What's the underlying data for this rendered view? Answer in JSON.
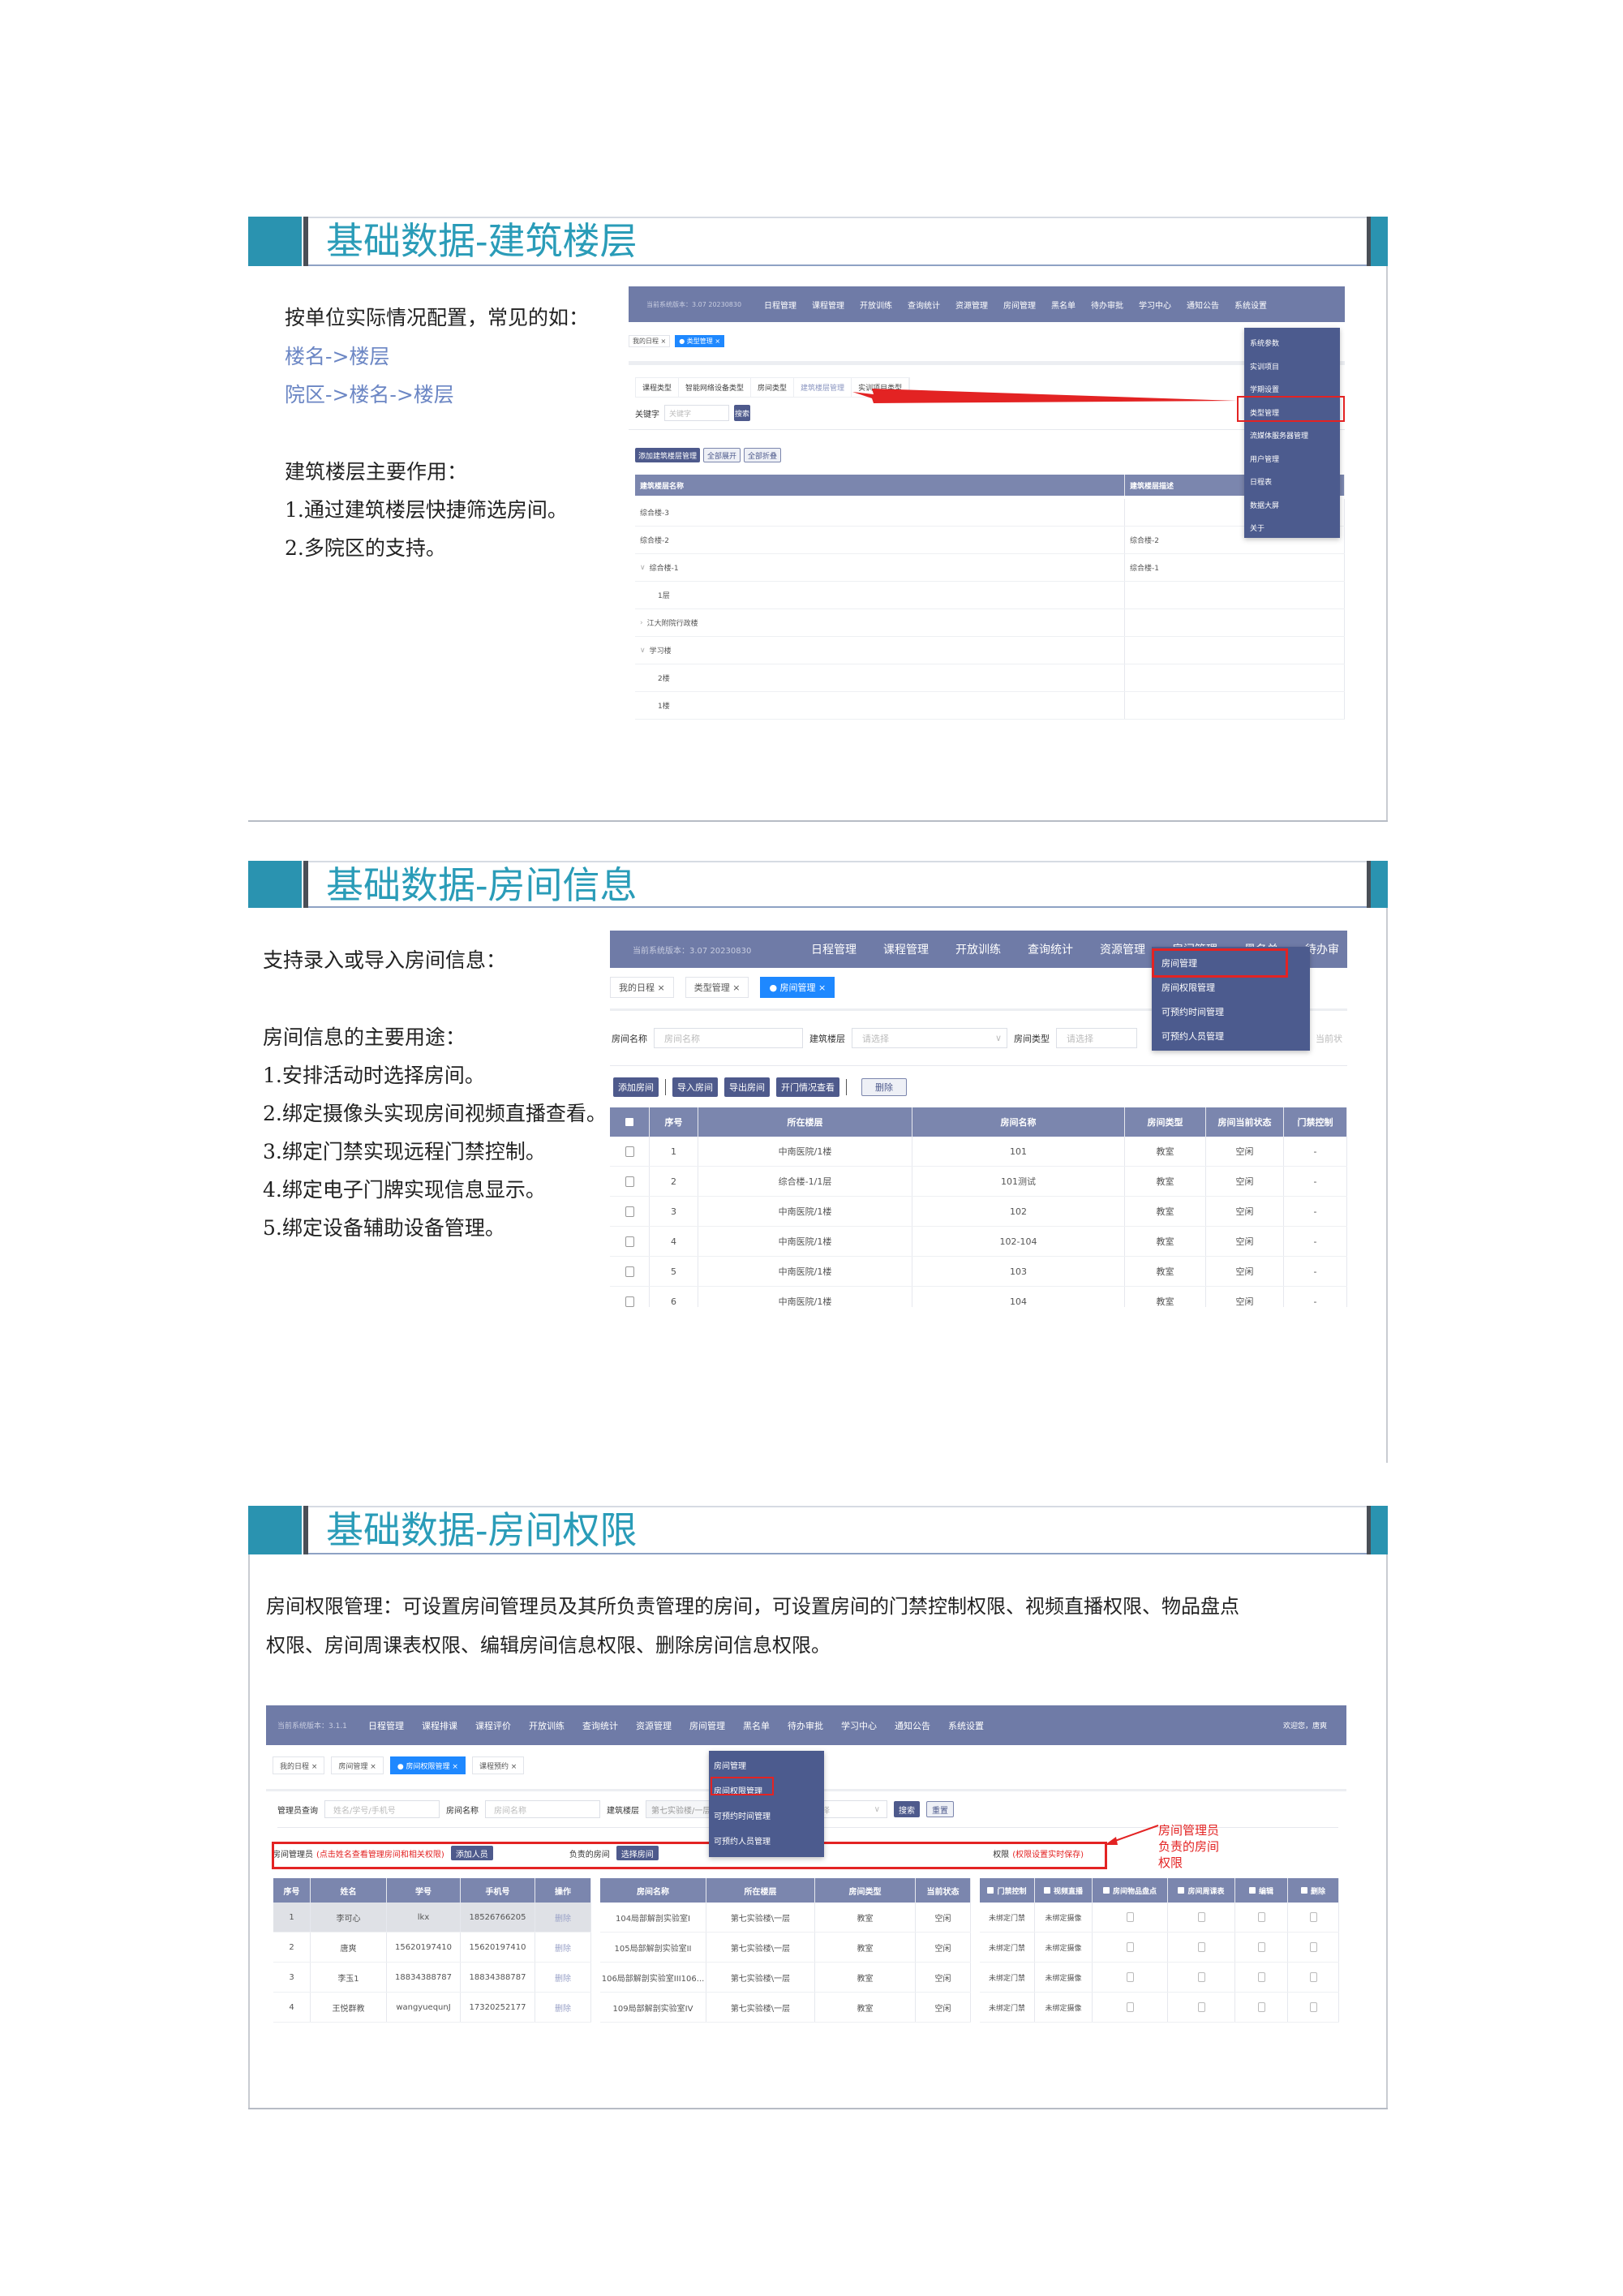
{
  "sections": [
    {
      "title": "基础数据-建筑楼层",
      "intro": "按单位实际情况配置，常见的如：",
      "examples": [
        "楼名->楼层",
        "院区->楼名->楼层"
      ],
      "purpose_title": "建筑楼层主要作用：",
      "purposes": [
        "1.通过建筑楼层快捷筛选房间。",
        "2.多院区的支持。"
      ]
    },
    {
      "title": "基础数据-房间信息",
      "intro": "支持录入或导入房间信息：",
      "purpose_title": "房间信息的主要用途：",
      "purposes": [
        "1.安排活动时选择房间。",
        "2.绑定摄像头实现房间视频直播查看。",
        "3.绑定门禁实现远程门禁控制。",
        "4.绑定电子门牌实现信息显示。",
        "5.绑定设备辅助设备管理。"
      ]
    },
    {
      "title": "基础数据-房间权限",
      "paragraph_lines": [
        "房间权限管理：可设置房间管理员及其所负责管理的房间，可设置房间的门禁控制权限、视频直播权限、物品盘点",
        "权限、房间周课表权限、编辑房间信息权限、删除房间信息权限。"
      ]
    }
  ],
  "shot1": {
    "version": "当前系统版本：3.07 20230830",
    "nav": [
      "日程管理",
      "课程管理",
      "开放训练",
      "查询统计",
      "资源管理",
      "房间管理",
      "黑名单",
      "待办审批",
      "学习中心",
      "通知公告",
      "系统设置"
    ],
    "tabs": [
      {
        "label": "我的日程 ×",
        "active": false
      },
      {
        "label": "● 类型管理 ×",
        "active": true
      }
    ],
    "subtabs": [
      "课程类型",
      "智能网络设备类型",
      "房间类型",
      "建筑楼层管理",
      "实训项目类型"
    ],
    "active_subtab": "建筑楼层管理",
    "keyword_label": "关键字",
    "keyword_placeholder": "关键字",
    "search_label": "搜索",
    "buttons": [
      "添加建筑楼层管理",
      "全部展开",
      "全部折叠"
    ],
    "headers": [
      "建筑楼层名称",
      "建筑楼层描述"
    ],
    "rows": [
      {
        "name": "综合楼-3",
        "desc": "",
        "level": 0,
        "toggle": ""
      },
      {
        "name": "综合楼-2",
        "desc": "综合楼-2",
        "level": 0,
        "toggle": ""
      },
      {
        "name": "综合楼-1",
        "desc": "综合楼-1",
        "level": 0,
        "toggle": "∨"
      },
      {
        "name": "1层",
        "desc": "",
        "level": 1,
        "toggle": ""
      },
      {
        "name": "江大附院行政楼",
        "desc": "",
        "level": 0,
        "toggle": "›"
      },
      {
        "name": "学习楼",
        "desc": "",
        "level": 0,
        "toggle": "∨"
      },
      {
        "name": "2楼",
        "desc": "",
        "level": 1,
        "toggle": ""
      },
      {
        "name": "1楼",
        "desc": "",
        "level": 1,
        "toggle": ""
      }
    ],
    "dropdown": [
      "系统参数",
      "实训项目",
      "学期设置",
      "类型管理",
      "流媒体服务器管理",
      "用户管理",
      "日程表",
      "数据大屏",
      "关于"
    ],
    "highlighted_item": "类型管理",
    "accent": "#e32323"
  },
  "shot2": {
    "version": "当前系统版本：3.07 20230830",
    "nav": [
      "日程管理",
      "课程管理",
      "开放训练",
      "查询统计",
      "资源管理",
      "房间管理",
      "黑名单",
      "待办审"
    ],
    "tabs": [
      {
        "label": "我的日程 ×",
        "active": false
      },
      {
        "label": "类型管理 ×",
        "active": false
      },
      {
        "label": "● 房间管理 ×",
        "active": true
      }
    ],
    "filters": {
      "room_name_label": "房间名称",
      "room_name_placeholder": "房间名称",
      "floor_label": "建筑楼层",
      "floor_placeholder": "请选择",
      "type_label": "房间类型",
      "type_placeholder": "请选择",
      "status_placeholder": "当前状"
    },
    "buttons": {
      "add": "添加房间",
      "import": "导入房间",
      "export": "导出房间",
      "door_log": "开门情况查看",
      "delete": "删除"
    },
    "headers": [
      "序号",
      "所在楼层",
      "房间名称",
      "房间类型",
      "房间当前状态",
      "门禁控制"
    ],
    "rows": [
      [
        "1",
        "中南医院/1楼",
        "101",
        "教室",
        "空闲",
        "-"
      ],
      [
        "2",
        "综合楼-1/1层",
        "101测试",
        "教室",
        "空闲",
        "-"
      ],
      [
        "3",
        "中南医院/1楼",
        "102",
        "教室",
        "空闲",
        "-"
      ],
      [
        "4",
        "中南医院/1楼",
        "102-104",
        "教室",
        "空闲",
        "-"
      ],
      [
        "5",
        "中南医院/1楼",
        "103",
        "教室",
        "空闲",
        "-"
      ],
      [
        "6",
        "中南医院/1楼",
        "104",
        "教室",
        "空闲",
        "-"
      ]
    ],
    "dropdown": [
      "房间管理",
      "房间权限管理",
      "可预约时间管理",
      "可预约人员管理"
    ],
    "highlighted_item": "房间管理"
  },
  "shot3": {
    "version": "当前系统版本：3.1.1",
    "nav": [
      "日程管理",
      "课程排课",
      "课程评价",
      "开放训练",
      "查询统计",
      "资源管理",
      "房间管理",
      "黑名单",
      "待办审批",
      "学习中心",
      "通知公告",
      "系统设置"
    ],
    "welcome": "欢迎您，唐爽",
    "tabs": [
      {
        "label": "我的日程 ×",
        "active": false
      },
      {
        "label": "房间管理 ×",
        "active": false
      },
      {
        "label": "● 房间权限管理 ×",
        "active": true
      },
      {
        "label": "课程预约 ×",
        "active": false
      }
    ],
    "filters": {
      "admin_label": "管理员查询",
      "admin_placeholder": "姓名/学号/手机号",
      "room_label": "房间名称",
      "room_placeholder": "房间名称",
      "floor_label": "建筑楼层",
      "floor_value": "第七实验楼/一层/...",
      "select_placeholder": "请选择",
      "search": "搜索",
      "reset": "重置"
    },
    "bar": {
      "admins_label": "房间管理员",
      "admins_hint": "(点击姓名查看管理房间和相关权限)",
      "add_person": "添加人员",
      "rooms_label": "负责的房间",
      "select_room": "选择房间",
      "perm_label": "权限",
      "perm_hint": "(权限设置实时保存)"
    },
    "annotation": [
      "房间管理员",
      "负责的房间",
      "权限"
    ],
    "admin_headers": [
      "序号",
      "姓名",
      "学号",
      "手机号",
      "操作"
    ],
    "admins": [
      [
        "1",
        "李可心",
        "lkx",
        "18526766205",
        "删除"
      ],
      [
        "2",
        "唐爽",
        "15620197410",
        "15620197410",
        "删除"
      ],
      [
        "3",
        "李玉1",
        "18834388787",
        "18834388787",
        "删除"
      ],
      [
        "4",
        "王悦群教",
        "wangyuequnJ",
        "17320252177",
        "删除"
      ]
    ],
    "selected_admin": "李可心",
    "room_headers": [
      "房间名称",
      "所在楼层",
      "房间类型",
      "当前状态"
    ],
    "rooms": [
      [
        "104局部解剖实验室I",
        "第七实验楼\\一层",
        "教室",
        "空闲"
      ],
      [
        "105局部解剖实验室II",
        "第七实验楼\\一层",
        "教室",
        "空闲"
      ],
      [
        "106局部解剖实验室III106...",
        "第七实验楼\\一层",
        "教室",
        "空闲"
      ],
      [
        "109局部解剖实验室IV",
        "第七实验楼\\一层",
        "教室",
        "空闲"
      ]
    ],
    "perm_headers": [
      "门禁控制",
      "视频直播",
      "房间物品盘点",
      "房间周课表",
      "编辑",
      "删除"
    ],
    "perms": [
      {
        "door": "未绑定门禁",
        "video": "未绑定摄像",
        "checks": [
          false,
          false,
          false,
          false
        ]
      },
      {
        "door": "未绑定门禁",
        "video": "未绑定摄像",
        "checks": [
          false,
          false,
          false,
          false
        ]
      },
      {
        "door": "未绑定门禁",
        "video": "未绑定摄像",
        "checks": [
          false,
          false,
          false,
          false
        ]
      },
      {
        "door": "未绑定门禁",
        "video": "未绑定摄像",
        "checks": [
          false,
          false,
          false,
          false
        ]
      }
    ],
    "dropdown": [
      "房间管理",
      "房间权限管理",
      "可预约时间管理",
      "可预约人员管理"
    ],
    "highlighted_item": "房间权限管理"
  }
}
